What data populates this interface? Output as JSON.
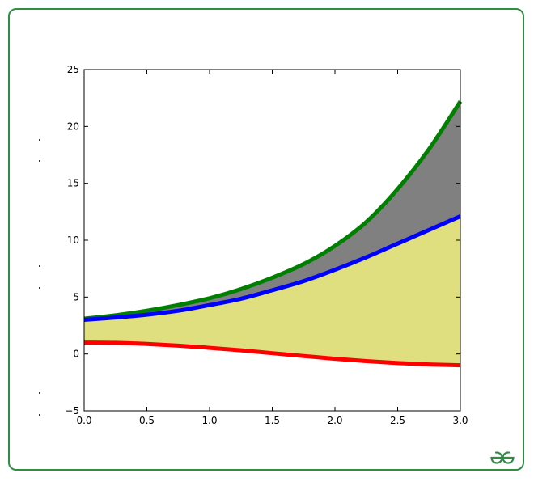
{
  "colors": {
    "frame_border": "#2f8d46",
    "logo": "#2f8d46"
  },
  "logo": {
    "text": "GG",
    "icon": "geeksforgeeks-logo"
  },
  "chart_data": {
    "type": "area",
    "title": "",
    "xlabel": "",
    "ylabel": "",
    "xlim": [
      0,
      3
    ],
    "ylim": [
      -5,
      25
    ],
    "x_ticks": [
      0.0,
      0.5,
      1.0,
      1.5,
      2.0,
      2.5,
      3.0
    ],
    "x_tick_labels": [
      "0.0",
      "0.5",
      "1.0",
      "1.5",
      "2.0",
      "2.5",
      "3.0"
    ],
    "y_ticks": [
      -5,
      0,
      5,
      10,
      15,
      20,
      25
    ],
    "y_tick_labels": [
      "−5",
      "0",
      "5",
      "10",
      "15",
      "20",
      "25"
    ],
    "grid": false,
    "x": [
      0.0,
      0.25,
      0.5,
      0.75,
      1.0,
      1.25,
      1.5,
      1.75,
      2.0,
      2.25,
      2.5,
      2.75,
      3.0
    ],
    "series": [
      {
        "color": "#008000",
        "values": [
          3.1,
          3.4,
          3.8,
          4.3,
          4.9,
          5.7,
          6.7,
          7.9,
          9.5,
          11.6,
          14.5,
          18.0,
          22.2
        ]
      },
      {
        "color": "#0000ff",
        "values": [
          3.0,
          3.2,
          3.45,
          3.8,
          4.3,
          4.85,
          5.6,
          6.4,
          7.4,
          8.5,
          9.7,
          10.9,
          12.1
        ]
      },
      {
        "color": "#ff0000",
        "values": [
          1.0,
          0.98,
          0.88,
          0.73,
          0.54,
          0.32,
          0.07,
          -0.18,
          -0.42,
          -0.63,
          -0.8,
          -0.92,
          -0.99
        ]
      }
    ],
    "fills": [
      {
        "between": [
          0,
          1
        ],
        "color": "#808080"
      },
      {
        "between": [
          1,
          2
        ],
        "color": "#dfdf80"
      }
    ]
  }
}
